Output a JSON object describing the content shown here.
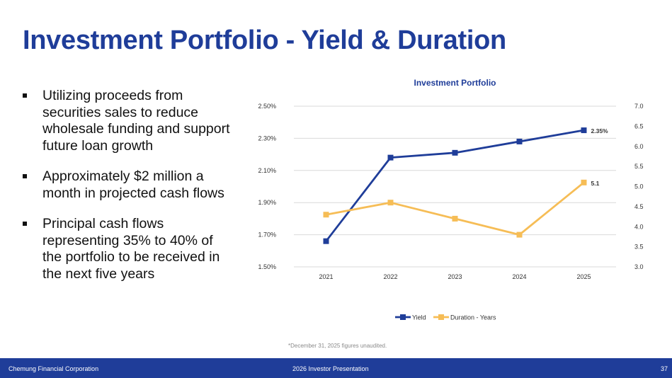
{
  "slide": {
    "title": "Investment Portfolio - Yield & Duration",
    "bullets": [
      "Utilizing proceeds from securities sales to reduce wholesale funding and support future loan growth",
      "Approximately $2 million a month in projected cash flows",
      "Principal cash flows representing 35% to 40% of the portfolio to be received in the next five years"
    ],
    "footnote": "*December 31, 2025 figures unaudited.",
    "footer": {
      "company": "Chemung Financial Corporation",
      "presentation": "2026 Investor Presentation",
      "page_number": "37"
    }
  },
  "colors": {
    "title": "#1f3d99",
    "yield_series": "#1f3d99",
    "duration_series": "#f6bd56",
    "grid": "#d9d9d9",
    "footer_bg": "#1f3d99"
  },
  "chart_data": {
    "type": "line",
    "title": "Investment Portfolio",
    "categories": [
      "2021",
      "2022",
      "2023",
      "2024",
      "2025"
    ],
    "left_axis": {
      "min": 1.5,
      "max": 2.5,
      "step": 0.2,
      "tick_labels": [
        "1.50%",
        "1.70%",
        "1.90%",
        "2.10%",
        "2.30%",
        "2.50%"
      ]
    },
    "right_axis": {
      "min": 3.0,
      "max": 7.0,
      "step": 0.5,
      "tick_labels": [
        "3.0",
        "3.5",
        "4.0",
        "4.5",
        "5.0",
        "5.5",
        "6.0",
        "6.5",
        "7.0"
      ]
    },
    "series": [
      {
        "name": "Yield",
        "axis": "left",
        "values": [
          1.66,
          2.18,
          2.21,
          2.28,
          2.35
        ],
        "last_label": "2.35%"
      },
      {
        "name": "Duration - Years",
        "axis": "right",
        "values": [
          4.3,
          4.6,
          4.2,
          3.8,
          5.1
        ],
        "last_label": "5.1"
      }
    ],
    "legend_position": "bottom",
    "gridlines": true
  }
}
